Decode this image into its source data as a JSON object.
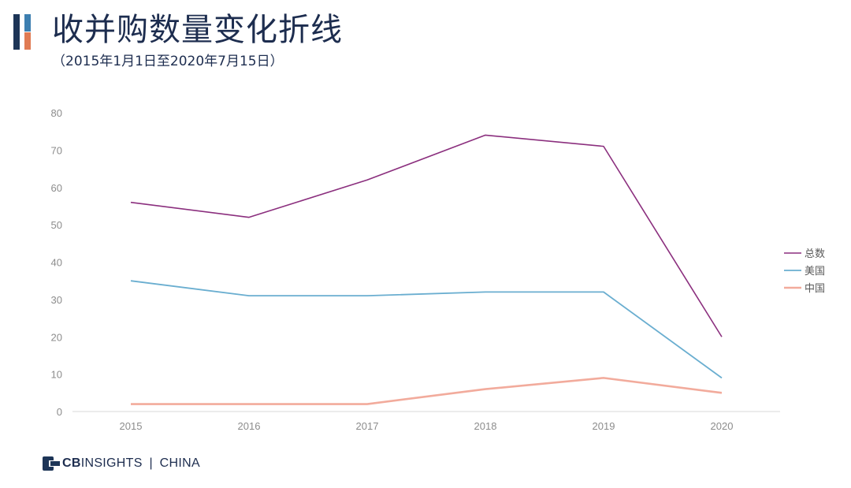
{
  "header": {
    "title": "收并购数量变化折线",
    "subtitle": "（2015年1月1日至2020年7月15日）"
  },
  "colors": {
    "brand_dark": "#1d3557",
    "brand_blue": "#3d7fb0",
    "brand_orange": "#e07b53",
    "series_total": "#8b2f7e",
    "series_us": "#6aaed0",
    "series_china": "#f2ab9c",
    "axis_text": "#8c8c8c"
  },
  "footer": {
    "brand_bold": "CB",
    "brand_light": "INSIGHTS",
    "separator": "|",
    "region": "CHINA"
  },
  "chart_data": {
    "type": "line",
    "title": "收并购数量变化折线",
    "subtitle": "（2015年1月1日至2020年7月15日）",
    "xlabel": "",
    "ylabel": "",
    "x": [
      "2015",
      "2016",
      "2017",
      "2018",
      "2019",
      "2020"
    ],
    "ylim": [
      0,
      80
    ],
    "yticks": [
      0,
      10,
      20,
      30,
      40,
      50,
      60,
      70,
      80
    ],
    "grid": false,
    "legend_position": "right",
    "series": [
      {
        "name": "总数",
        "values": [
          56,
          52,
          62,
          74,
          71,
          20
        ],
        "color": "#8b2f7e"
      },
      {
        "name": "美国",
        "values": [
          35,
          31,
          31,
          32,
          32,
          9
        ],
        "color": "#6aaed0"
      },
      {
        "name": "中国",
        "values": [
          2,
          2,
          2,
          6,
          9,
          5
        ],
        "color": "#f2ab9c"
      }
    ]
  }
}
